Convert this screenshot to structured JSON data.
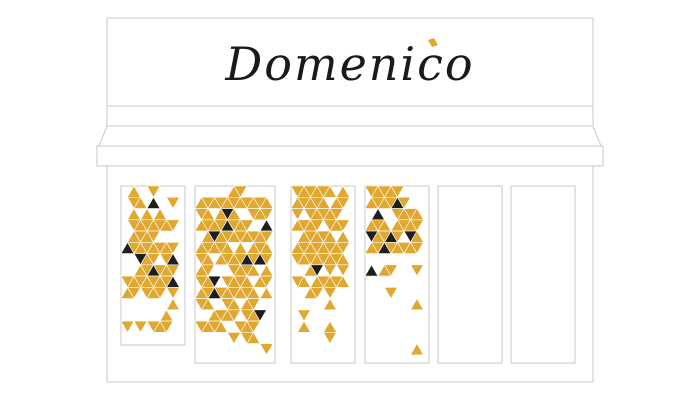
{
  "sign": {
    "logo_text": "Domenico"
  },
  "colors": {
    "background": "#ffffff",
    "outline": "#c8c8c8",
    "logo_ink": "#1a1a1a",
    "logo_accent": "#e0a830",
    "tile_primary": "#e0a830",
    "tile_dark": "#1e1e1e"
  },
  "panels": [
    {
      "id": "panel-1",
      "mosaic_fill": 0.7
    },
    {
      "id": "panel-2",
      "mosaic_fill": 0.75
    },
    {
      "id": "panel-3",
      "mosaic_fill": 0.55
    },
    {
      "id": "panel-4",
      "mosaic_fill": 0.35
    },
    {
      "id": "panel-5",
      "mosaic_fill": 0
    },
    {
      "id": "panel-6",
      "mosaic_fill": 0
    }
  ]
}
